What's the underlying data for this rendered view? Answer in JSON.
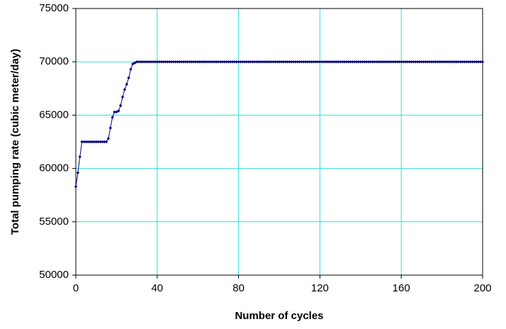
{
  "chart_data": {
    "type": "line",
    "x_label": "Number of cycles",
    "y_label": "Total pumping rate (cubic meter/day)",
    "color": "#000080",
    "grid_color": "#33dddd",
    "grid": true,
    "xlim": [
      0,
      200
    ],
    "xticks": [
      0,
      40,
      80,
      120,
      160,
      200
    ],
    "ylim": [
      50000,
      75000
    ],
    "yticks": [
      50000,
      55000,
      60000,
      65000,
      70000,
      75000
    ],
    "x": [
      0,
      1,
      2,
      3,
      4,
      5,
      6,
      7,
      8,
      9,
      10,
      11,
      12,
      13,
      14,
      15,
      16,
      17,
      18,
      19,
      20,
      21,
      22,
      23,
      24,
      25,
      26,
      27,
      28,
      29,
      30,
      31,
      32,
      33,
      34,
      35,
      36,
      37,
      38,
      39,
      40,
      41,
      42,
      43,
      44,
      45,
      46,
      47,
      48,
      49,
      50,
      51,
      52,
      53,
      54,
      55,
      56,
      57,
      58,
      59,
      60,
      61,
      62,
      63,
      64,
      65,
      66,
      67,
      68,
      69,
      70,
      71,
      72,
      73,
      74,
      75,
      76,
      77,
      78,
      79,
      80,
      81,
      82,
      83,
      84,
      85,
      86,
      87,
      88,
      89,
      90,
      91,
      92,
      93,
      94,
      95,
      96,
      97,
      98,
      99,
      100,
      101,
      102,
      103,
      104,
      105,
      106,
      107,
      108,
      109,
      110,
      111,
      112,
      113,
      114,
      115,
      116,
      117,
      118,
      119,
      120,
      121,
      122,
      123,
      124,
      125,
      126,
      127,
      128,
      129,
      130,
      131,
      132,
      133,
      134,
      135,
      136,
      137,
      138,
      139,
      140,
      141,
      142,
      143,
      144,
      145,
      146,
      147,
      148,
      149,
      150,
      151,
      152,
      153,
      154,
      155,
      156,
      157,
      158,
      159,
      160,
      161,
      162,
      163,
      164,
      165,
      166,
      167,
      168,
      169,
      170,
      171,
      172,
      173,
      174,
      175,
      176,
      177,
      178,
      179,
      180,
      181,
      182,
      183,
      184,
      185,
      186,
      187,
      188,
      189,
      190,
      191,
      192,
      193,
      194,
      195,
      196,
      197,
      198,
      199,
      200
    ],
    "values": [
      58300,
      59600,
      61100,
      62500,
      62500,
      62500,
      62500,
      62500,
      62500,
      62500,
      62500,
      62500,
      62500,
      62500,
      62500,
      62500,
      62800,
      63800,
      64800,
      65300,
      65300,
      65400,
      65900,
      66700,
      67400,
      67900,
      68500,
      69300,
      69800,
      69900,
      70000,
      70000,
      70000,
      70000,
      70000,
      70000,
      70000,
      70000,
      70000,
      70000,
      70000,
      70000,
      70000,
      70000,
      70000,
      70000,
      70000,
      70000,
      70000,
      70000,
      70000,
      70000,
      70000,
      70000,
      70000,
      70000,
      70000,
      70000,
      70000,
      70000,
      70000,
      70000,
      70000,
      70000,
      70000,
      70000,
      70000,
      70000,
      70000,
      70000,
      70000,
      70000,
      70000,
      70000,
      70000,
      70000,
      70000,
      70000,
      70000,
      70000,
      70000,
      70000,
      70000,
      70000,
      70000,
      70000,
      70000,
      70000,
      70000,
      70000,
      70000,
      70000,
      70000,
      70000,
      70000,
      70000,
      70000,
      70000,
      70000,
      70000,
      70000,
      70000,
      70000,
      70000,
      70000,
      70000,
      70000,
      70000,
      70000,
      70000,
      70000,
      70000,
      70000,
      70000,
      70000,
      70000,
      70000,
      70000,
      70000,
      70000,
      70000,
      70000,
      70000,
      70000,
      70000,
      70000,
      70000,
      70000,
      70000,
      70000,
      70000,
      70000,
      70000,
      70000,
      70000,
      70000,
      70000,
      70000,
      70000,
      70000,
      70000,
      70000,
      70000,
      70000,
      70000,
      70000,
      70000,
      70000,
      70000,
      70000,
      70000,
      70000,
      70000,
      70000,
      70000,
      70000,
      70000,
      70000,
      70000,
      70000,
      70000,
      70000,
      70000,
      70000,
      70000,
      70000,
      70000,
      70000,
      70000,
      70000,
      70000,
      70000,
      70000,
      70000,
      70000,
      70000,
      70000,
      70000,
      70000,
      70000,
      70000,
      70000,
      70000,
      70000,
      70000,
      70000,
      70000,
      70000,
      70000,
      70000,
      70000,
      70000,
      70000,
      70000,
      70000,
      70000,
      70000,
      70000,
      70000,
      70000,
      70000
    ]
  }
}
